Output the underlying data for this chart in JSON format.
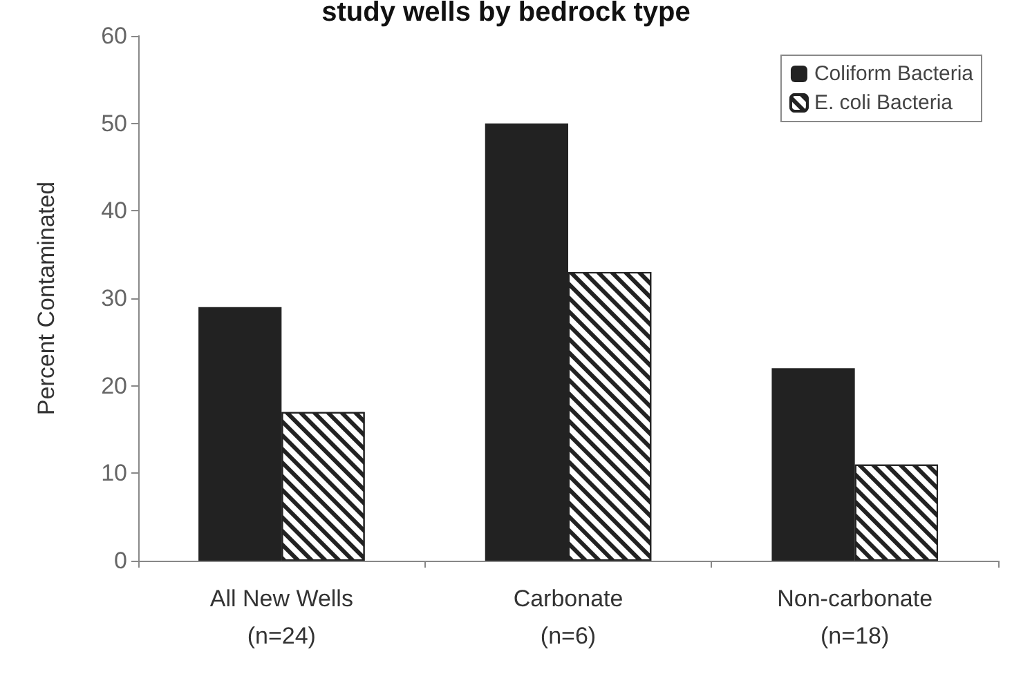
{
  "chart_data": {
    "type": "bar",
    "title": "study wells by bedrock type",
    "ylabel": "Percent Contaminated",
    "categories": [
      "All New Wells\n(n=24)",
      "Carbonate\n(n=6)",
      "Non-carbonate\n(n=18)"
    ],
    "series": [
      {
        "name": "Coliform Bacteria",
        "color": "#222222",
        "values": [
          29,
          50,
          22
        ]
      },
      {
        "name": "E. coli Bacteria",
        "color": "#ffffff",
        "values": [
          17,
          33,
          11
        ]
      }
    ],
    "ylim": [
      0,
      60
    ],
    "yticks": [
      0,
      10,
      20,
      30,
      40,
      50,
      60
    ],
    "grid": false,
    "legend": "top right"
  }
}
